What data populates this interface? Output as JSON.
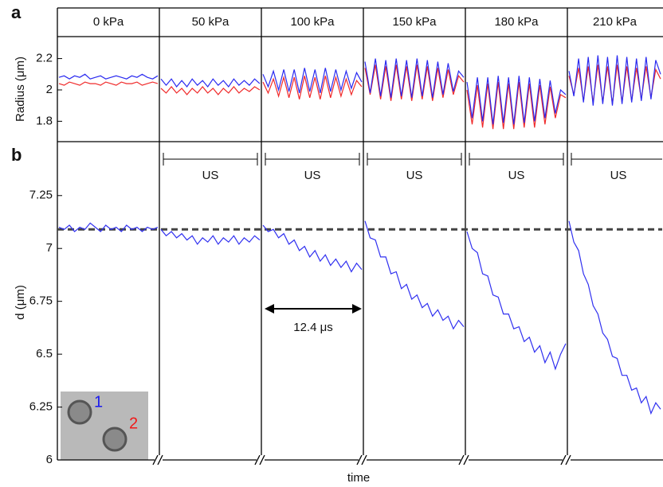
{
  "chart_data": [
    {
      "type": "line",
      "panel_label": "a",
      "ylabel": "Radius (μm)",
      "headers": [
        "0 kPa",
        "50 kPa",
        "100 kPa",
        "150 kPa",
        "180 kPa",
        "210 kPa"
      ],
      "colors": [
        "#2a2af0",
        "#f02a2a"
      ],
      "ylim": [
        1.67,
        2.34
      ],
      "yticks": [
        1.8,
        2,
        2.2
      ],
      "segments": [
        {
          "series": [
            {
              "values": [
                2.08,
                2.09,
                2.07,
                2.09,
                2.08,
                2.1,
                2.07,
                2.08,
                2.09,
                2.07,
                2.08,
                2.09,
                2.08,
                2.07,
                2.09,
                2.08,
                2.1,
                2.08,
                2.07,
                2.09
              ]
            },
            {
              "values": [
                2.04,
                2.03,
                2.05,
                2.04,
                2.03,
                2.05,
                2.04,
                2.04,
                2.03,
                2.05,
                2.04,
                2.03,
                2.05,
                2.04,
                2.04,
                2.05,
                2.03,
                2.04,
                2.05,
                2.04
              ]
            }
          ]
        },
        {
          "series": [
            {
              "values": [
                2.07,
                2.03,
                2.07,
                2.02,
                2.06,
                2.02,
                2.07,
                2.03,
                2.06,
                2.02,
                2.07,
                2.03,
                2.06,
                2.02,
                2.07,
                2.03,
                2.06,
                2.03,
                2.07,
                2.04
              ]
            },
            {
              "values": [
                2.01,
                1.98,
                2.02,
                1.98,
                2.01,
                1.97,
                2.01,
                1.98,
                2.02,
                1.98,
                2.01,
                1.97,
                2.01,
                1.98,
                2.02,
                1.98,
                2.01,
                1.99,
                2.02,
                2.0
              ]
            }
          ]
        },
        {
          "series": [
            {
              "values": [
                2.1,
                2.02,
                2.12,
                2.0,
                2.13,
                1.99,
                2.13,
                1.98,
                2.14,
                1.99,
                2.13,
                1.98,
                2.14,
                1.99,
                2.13,
                2.0,
                2.12,
                2.01,
                2.11,
                2.05
              ]
            },
            {
              "values": [
                2.05,
                1.98,
                2.07,
                1.96,
                2.08,
                1.95,
                2.08,
                1.94,
                2.09,
                1.95,
                2.08,
                1.94,
                2.09,
                1.95,
                2.08,
                1.96,
                2.07,
                1.97,
                2.06,
                2.02
              ]
            }
          ]
        },
        {
          "series": [
            {
              "values": [
                2.18,
                1.98,
                2.2,
                1.96,
                2.19,
                1.95,
                2.2,
                1.96,
                2.19,
                1.95,
                2.2,
                1.96,
                2.19,
                1.95,
                2.18,
                1.97,
                2.17,
                1.99,
                2.12,
                2.08
              ]
            },
            {
              "values": [
                2.14,
                1.97,
                2.16,
                1.94,
                2.15,
                1.93,
                2.16,
                1.94,
                2.15,
                1.93,
                2.16,
                1.94,
                2.15,
                1.93,
                2.14,
                1.95,
                2.13,
                1.97,
                2.09,
                2.05
              ]
            }
          ]
        },
        {
          "series": [
            {
              "values": [
                2.05,
                1.82,
                2.08,
                1.8,
                2.08,
                1.78,
                2.09,
                1.79,
                2.08,
                1.78,
                2.09,
                1.79,
                2.08,
                1.8,
                2.07,
                1.82,
                2.06,
                1.85,
                2.0,
                1.97
              ]
            },
            {
              "values": [
                2.0,
                1.78,
                2.03,
                1.76,
                2.04,
                1.75,
                2.05,
                1.75,
                2.04,
                1.75,
                2.05,
                1.76,
                2.04,
                1.76,
                2.03,
                1.78,
                2.02,
                1.82,
                1.97,
                1.95
              ]
            }
          ]
        },
        {
          "series": [
            {
              "values": [
                2.12,
                1.96,
                2.2,
                1.92,
                2.21,
                1.9,
                2.22,
                1.91,
                2.21,
                1.9,
                2.22,
                1.91,
                2.21,
                1.92,
                2.2,
                1.93,
                2.21,
                1.94,
                2.19,
                2.1
              ]
            },
            {
              "values": [
                2.09,
                1.97,
                2.14,
                1.93,
                2.15,
                1.92,
                2.16,
                1.92,
                2.15,
                1.91,
                2.16,
                1.92,
                2.15,
                1.93,
                2.14,
                1.94,
                2.15,
                1.95,
                2.13,
                2.07
              ]
            }
          ]
        }
      ]
    },
    {
      "type": "line",
      "panel_label": "b",
      "ylabel": "d (μm)",
      "xlabel": "time",
      "color": "#3030f0",
      "ylim": [
        6,
        7.505
      ],
      "yticks": [
        6,
        6.25,
        6.5,
        6.75,
        7,
        7.25
      ],
      "reference_line": 7.09,
      "bracket_labels": [
        "US",
        "US",
        "US",
        "US",
        "US"
      ],
      "annotation": "12.4 μs",
      "inset_labels": [
        "1",
        "2"
      ],
      "segments": [
        {
          "values": [
            7.1,
            7.09,
            7.11,
            7.08,
            7.1,
            7.09,
            7.12,
            7.1,
            7.08,
            7.11,
            7.09,
            7.1,
            7.08,
            7.11,
            7.09,
            7.1,
            7.08,
            7.1,
            7.09,
            7.1
          ]
        },
        {
          "values": [
            7.09,
            7.06,
            7.08,
            7.05,
            7.07,
            7.04,
            7.06,
            7.02,
            7.05,
            7.03,
            7.06,
            7.02,
            7.05,
            7.03,
            7.06,
            7.02,
            7.05,
            7.03,
            7.06,
            7.04
          ]
        },
        {
          "values": [
            7.11,
            7.08,
            7.09,
            7.05,
            7.07,
            7.02,
            7.04,
            6.99,
            7.01,
            6.96,
            6.99,
            6.94,
            6.97,
            6.92,
            6.95,
            6.91,
            6.94,
            6.89,
            6.93,
            6.9
          ]
        },
        {
          "values": [
            7.13,
            7.05,
            7.04,
            6.96,
            6.96,
            6.88,
            6.89,
            6.81,
            6.83,
            6.76,
            6.78,
            6.72,
            6.74,
            6.68,
            6.71,
            6.66,
            6.68,
            6.62,
            6.66,
            6.63
          ]
        },
        {
          "values": [
            7.08,
            7.0,
            6.98,
            6.88,
            6.87,
            6.78,
            6.77,
            6.69,
            6.69,
            6.62,
            6.63,
            6.56,
            6.58,
            6.51,
            6.54,
            6.46,
            6.51,
            6.43,
            6.5,
            6.55
          ]
        },
        {
          "values": [
            7.13,
            7.03,
            6.99,
            6.88,
            6.83,
            6.73,
            6.69,
            6.6,
            6.57,
            6.49,
            6.48,
            6.4,
            6.4,
            6.33,
            6.34,
            6.27,
            6.3,
            6.22,
            6.27,
            6.24
          ]
        }
      ]
    }
  ]
}
